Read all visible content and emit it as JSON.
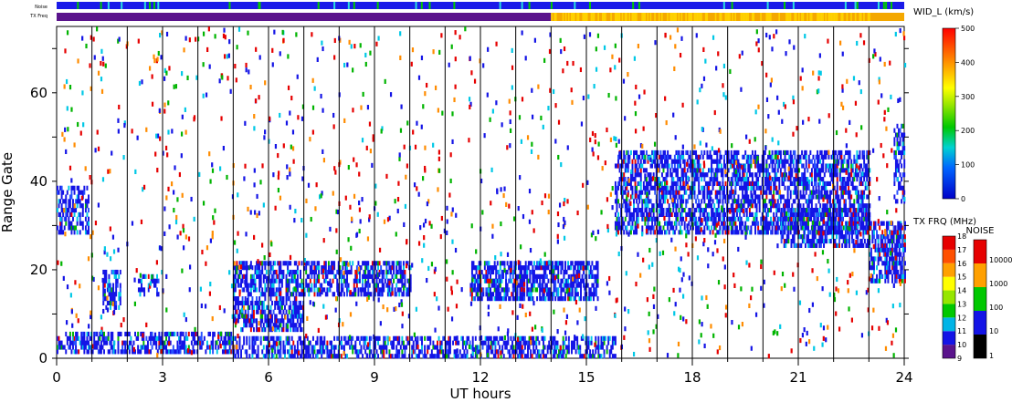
{
  "chart_data": {
    "type": "heatmap",
    "xlabel": "UT hours",
    "ylabel": "Range Gate",
    "xlim": [
      0,
      24
    ],
    "ylim": [
      0,
      75
    ],
    "x_ticks": [
      "0",
      "3",
      "6",
      "9",
      "12",
      "15",
      "18",
      "21",
      "24"
    ],
    "y_ticks": [
      "0",
      "20",
      "40",
      "60"
    ],
    "hour_markers": [
      1,
      2,
      3,
      4,
      5,
      6,
      7,
      8,
      9,
      10,
      11,
      12,
      13,
      14,
      15,
      16,
      17,
      18,
      19,
      20,
      21,
      22,
      23
    ],
    "scatter_regions": [
      {
        "t0": 0.0,
        "t1": 0.9,
        "g0": 28,
        "g1": 38,
        "density": 0.55
      },
      {
        "t0": 1.3,
        "t1": 1.8,
        "g0": 11,
        "g1": 19,
        "density": 0.5
      },
      {
        "t0": 0.0,
        "t1": 5.0,
        "g0": 1,
        "g1": 5,
        "density": 0.55
      },
      {
        "t0": 2.3,
        "t1": 2.9,
        "g0": 14,
        "g1": 18,
        "density": 0.4
      },
      {
        "t0": 5.0,
        "t1": 10.0,
        "g0": 14,
        "g1": 21,
        "density": 0.6
      },
      {
        "t0": 5.0,
        "t1": 7.0,
        "g0": 6,
        "g1": 13,
        "density": 0.6
      },
      {
        "t0": 5.0,
        "t1": 15.8,
        "g0": 0,
        "g1": 4,
        "density": 0.55
      },
      {
        "t0": 11.7,
        "t1": 15.3,
        "g0": 13,
        "g1": 21,
        "density": 0.65
      },
      {
        "t0": 15.8,
        "t1": 23.0,
        "g0": 28,
        "g1": 46,
        "density": 0.6
      },
      {
        "t0": 20.5,
        "t1": 23.0,
        "g0": 25,
        "g1": 33,
        "density": 0.6
      },
      {
        "t0": 23.0,
        "t1": 24.0,
        "g0": 17,
        "g1": 30,
        "density": 0.65
      },
      {
        "t0": 23.7,
        "t1": 24.0,
        "g0": 35,
        "g1": 52,
        "density": 0.5
      }
    ],
    "tx_freq_change_hour": 14.0,
    "tx_freq_before": 10.5,
    "tx_freq_after": 14.5,
    "noise_level": 10,
    "widl_colorbar": {
      "title": "WID_L (km/s)",
      "ticks": [
        "500",
        "400",
        "300",
        "200",
        "100",
        "0"
      ],
      "range": [
        0,
        500
      ]
    },
    "txfrq_colorbar": {
      "title": "TX FRQ (MHz)",
      "ticks": [
        "18",
        "17",
        "16",
        "15",
        "14",
        "13",
        "12",
        "11",
        "10",
        "9"
      ],
      "range": [
        9,
        18
      ]
    },
    "noise_colorbar": {
      "title": "NOISE",
      "ticks": [
        "10000",
        "1000",
        "100",
        "10",
        "1"
      ],
      "range": [
        1,
        10000
      ]
    },
    "header_labels": {
      "noise": "Noise",
      "txfreq": "TX Freq"
    }
  }
}
